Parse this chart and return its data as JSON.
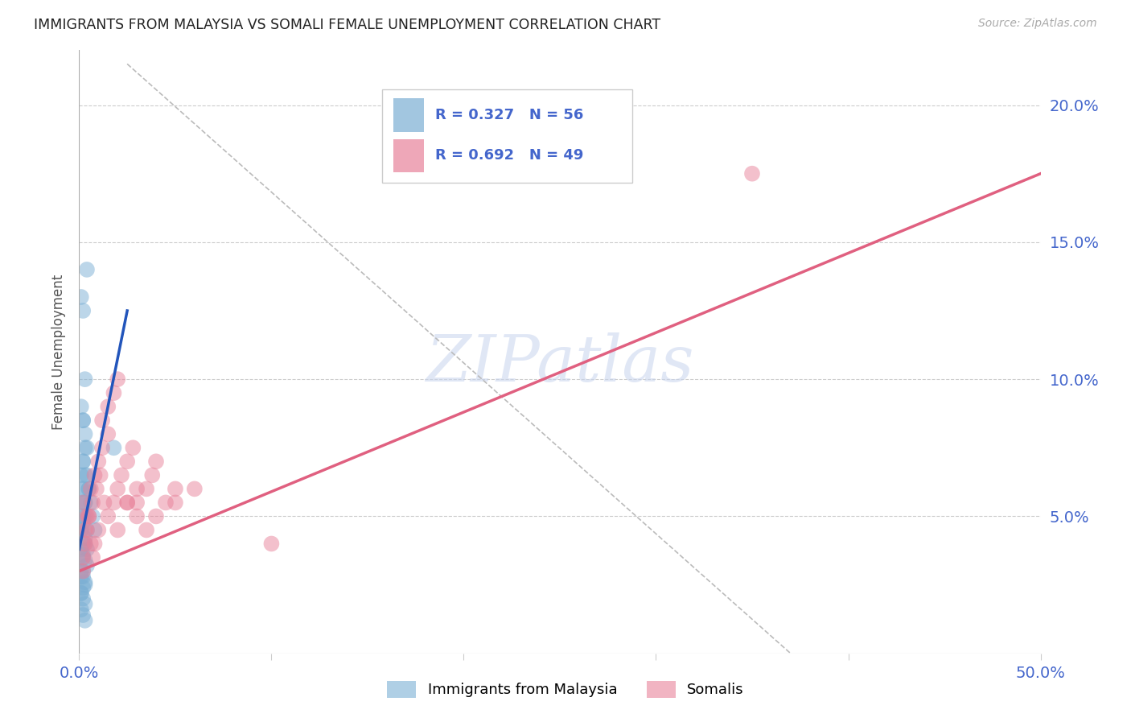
{
  "title": "IMMIGRANTS FROM MALAYSIA VS SOMALI FEMALE UNEMPLOYMENT CORRELATION CHART",
  "source": "Source: ZipAtlas.com",
  "ylabel": "Female Unemployment",
  "ytick_labels": [
    "20.0%",
    "15.0%",
    "10.0%",
    "5.0%"
  ],
  "ytick_values": [
    0.2,
    0.15,
    0.1,
    0.05
  ],
  "xmin": 0.0,
  "xmax": 0.5,
  "ymin": 0.0,
  "ymax": 0.22,
  "legend_blue_R": "R = 0.327",
  "legend_blue_N": "N = 56",
  "legend_pink_R": "R = 0.692",
  "legend_pink_N": "N = 49",
  "watermark": "ZIPatlas",
  "blue_color": "#7bafd4",
  "pink_color": "#e8829a",
  "blue_line_color": "#2255bb",
  "pink_line_color": "#e06080",
  "dashed_line_color": "#bbbbbb",
  "tick_label_color": "#4466cc",
  "title_color": "#222222",
  "blue_scatter_x": [
    0.002,
    0.003,
    0.004,
    0.005,
    0.006,
    0.007,
    0.008,
    0.001,
    0.002,
    0.003,
    0.001,
    0.002,
    0.003,
    0.004,
    0.002,
    0.003,
    0.001,
    0.002,
    0.003,
    0.004,
    0.005,
    0.003,
    0.002,
    0.001,
    0.003,
    0.004,
    0.002,
    0.001,
    0.002,
    0.003,
    0.001,
    0.002,
    0.003,
    0.001,
    0.002,
    0.003,
    0.002,
    0.001,
    0.002,
    0.003,
    0.001,
    0.002,
    0.001,
    0.003,
    0.002,
    0.001,
    0.002,
    0.003,
    0.004,
    0.002,
    0.001,
    0.003,
    0.002,
    0.001,
    0.004,
    0.018
  ],
  "blue_scatter_y": [
    0.085,
    0.075,
    0.065,
    0.06,
    0.055,
    0.05,
    0.045,
    0.13,
    0.125,
    0.1,
    0.09,
    0.085,
    0.08,
    0.075,
    0.07,
    0.065,
    0.06,
    0.055,
    0.05,
    0.045,
    0.06,
    0.055,
    0.05,
    0.045,
    0.04,
    0.038,
    0.035,
    0.03,
    0.028,
    0.025,
    0.022,
    0.02,
    0.018,
    0.016,
    0.014,
    0.012,
    0.07,
    0.065,
    0.06,
    0.055,
    0.05,
    0.048,
    0.045,
    0.042,
    0.04,
    0.038,
    0.036,
    0.034,
    0.032,
    0.03,
    0.028,
    0.026,
    0.024,
    0.022,
    0.14,
    0.075
  ],
  "pink_scatter_x": [
    0.002,
    0.004,
    0.006,
    0.008,
    0.01,
    0.012,
    0.015,
    0.018,
    0.02,
    0.022,
    0.025,
    0.028,
    0.03,
    0.035,
    0.038,
    0.04,
    0.045,
    0.05,
    0.003,
    0.005,
    0.007,
    0.009,
    0.011,
    0.013,
    0.015,
    0.02,
    0.025,
    0.03,
    0.002,
    0.003,
    0.004,
    0.005,
    0.006,
    0.007,
    0.008,
    0.01,
    0.012,
    0.015,
    0.018,
    0.02,
    0.025,
    0.03,
    0.035,
    0.04,
    0.05,
    0.06,
    0.35,
    0.002,
    0.1
  ],
  "pink_scatter_y": [
    0.055,
    0.05,
    0.06,
    0.065,
    0.07,
    0.075,
    0.08,
    0.055,
    0.06,
    0.065,
    0.07,
    0.075,
    0.055,
    0.06,
    0.065,
    0.07,
    0.055,
    0.06,
    0.045,
    0.05,
    0.055,
    0.06,
    0.065,
    0.055,
    0.05,
    0.045,
    0.055,
    0.06,
    0.035,
    0.04,
    0.045,
    0.05,
    0.04,
    0.035,
    0.04,
    0.045,
    0.085,
    0.09,
    0.095,
    0.1,
    0.055,
    0.05,
    0.045,
    0.05,
    0.055,
    0.06,
    0.175,
    0.03,
    0.04
  ],
  "blue_line_x": [
    0.0,
    0.025
  ],
  "blue_line_y": [
    0.038,
    0.125
  ],
  "pink_line_x": [
    0.0,
    0.5
  ],
  "pink_line_y": [
    0.03,
    0.175
  ],
  "dashed_line_x": [
    0.025,
    0.37
  ],
  "dashed_line_y": [
    0.215,
    0.0
  ]
}
